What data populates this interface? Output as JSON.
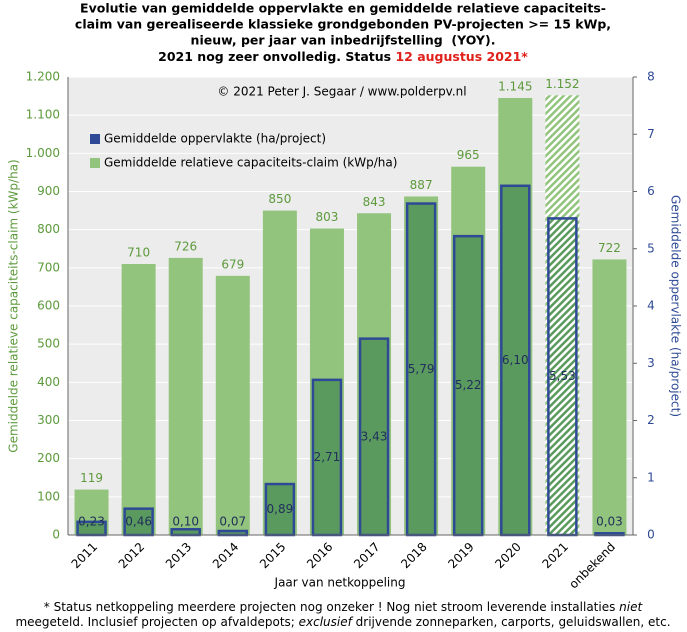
{
  "chart_data": {
    "type": "bar",
    "title": [
      "Evolutie van gemiddelde oppervlakte en gemiddelde relatieve capaciteits-",
      "claim van gerealiseerde klassieke grondgebonden PV-projecten >= 15 kWp,",
      "nieuw, per jaar van inbedrijfstelling  (YOY)."
    ],
    "title_status_prefix": "2021 nog zeer onvolledig. Status ",
    "title_status": "12 augustus 2021*",
    "annotation": "© 2021 Peter J. Segaar / www.polderpv.nl",
    "xlabel": "Jaar van netkoppeling",
    "ylabel": "Gemiddelde  relatieve capaciteits-claim (kWp/ha)",
    "y2label": "Gemiddelde  oppervlakte  (ha/project)",
    "categories": [
      "2011",
      "2012",
      "2013",
      "2014",
      "2015",
      "2016",
      "2017",
      "2018",
      "2019",
      "2020",
      "2021",
      "onbekend"
    ],
    "hatched": [
      false,
      false,
      false,
      false,
      false,
      false,
      false,
      false,
      false,
      false,
      true,
      false
    ],
    "series": [
      {
        "name": "Gemiddelde relatieve capaciteits-claim (kWp/ha)",
        "color": "#93c47d",
        "axis": "y",
        "values": [
          119,
          710,
          726,
          679,
          850,
          803,
          843,
          887,
          965,
          1145,
          1152,
          722
        ],
        "value_labels": [
          "119",
          "710",
          "726",
          "679",
          "850",
          "803",
          "843",
          "887",
          "965",
          "1.145",
          "1.152",
          "722"
        ]
      },
      {
        "name": "Gemiddelde oppervlakte (ha/project)",
        "color": "#2e4a96",
        "fill_color": "#5b9a5e",
        "axis": "y2",
        "values": [
          0.23,
          0.46,
          0.1,
          0.07,
          0.89,
          2.71,
          3.43,
          5.79,
          5.22,
          6.1,
          5.53,
          0.03
        ],
        "value_labels": [
          "0,23",
          "0,46",
          "0,10",
          "0,07",
          "0,89",
          "2,71",
          "3,43",
          "5,79",
          "5,22",
          "6,10",
          "5,53",
          "0,03"
        ]
      }
    ],
    "ylim": [
      0,
      1200
    ],
    "yticks": [
      0,
      100,
      200,
      300,
      400,
      500,
      600,
      700,
      800,
      900,
      {
        "value": 1000,
        "label": "1.000"
      },
      {
        "value": 1100,
        "label": "1.100"
      },
      {
        "value": 1200,
        "label": "1.200"
      }
    ],
    "y2lim": [
      0,
      8
    ],
    "y2ticks": [
      0,
      1,
      2,
      3,
      4,
      5,
      6,
      7,
      8
    ],
    "grid": true,
    "footnote": [
      [
        {
          "text": "* Status netkoppeling meerdere projecten nog onzeker ! Nog niet stroom leverende installaties ",
          "italic": false
        },
        {
          "text": "niet",
          "italic": true
        }
      ],
      [
        {
          "text": "meegeteld. Inclusief projecten op afvaldepots; ",
          "italic": false
        },
        {
          "text": "exclusief",
          "italic": true
        },
        {
          "text": " drijvende zonneparken, carports, geluidswallen, etc.",
          "italic": false
        }
      ]
    ]
  }
}
